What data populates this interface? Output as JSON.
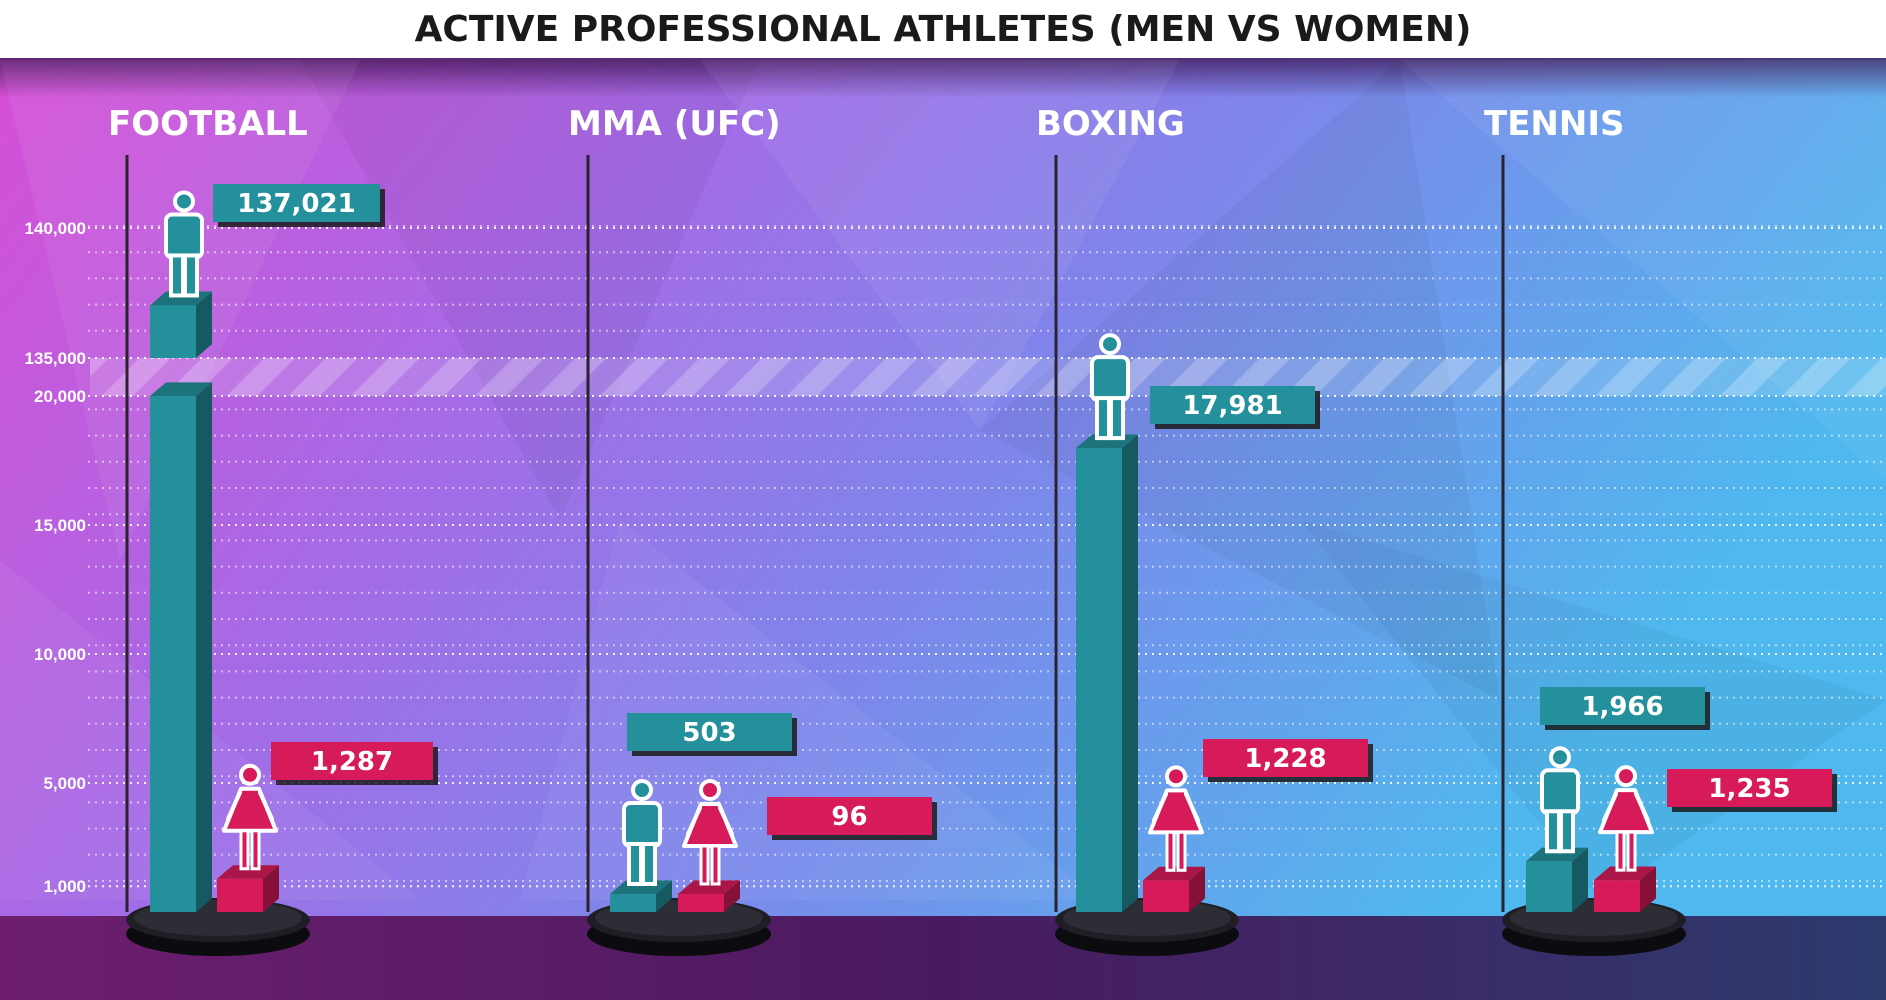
{
  "chart_data": {
    "type": "bar",
    "title": "ACTIVE PROFESSIONAL ATHLETES (MEN VS WOMEN)",
    "xlabel": "",
    "ylabel": "",
    "categories": [
      "FOOTBALL",
      "MMA (UFC)",
      "BOXING",
      "TENNIS"
    ],
    "series": [
      {
        "key": "men",
        "values": [
          137021,
          503,
          17981,
          1966
        ],
        "labels": [
          "137,021",
          "503",
          "17,981",
          "1,966"
        ],
        "color": "#23909b"
      },
      {
        "key": "women",
        "values": [
          1287,
          96,
          1228,
          1235
        ],
        "labels": [
          "1,287",
          "96",
          "1,228",
          "1,235"
        ],
        "color": "#d61a5a"
      }
    ],
    "y_axis": {
      "broken": true,
      "lower_range": [
        0,
        20000
      ],
      "upper_range": [
        135000,
        140000
      ],
      "ticks": [
        {
          "value": 1000,
          "label": "1,000"
        },
        {
          "value": 5000,
          "label": "5,000"
        },
        {
          "value": 10000,
          "label": "10,000"
        },
        {
          "value": 15000,
          "label": "15,000"
        },
        {
          "value": 20000,
          "label": "20,000"
        },
        {
          "value": 135000,
          "label": "135,000"
        },
        {
          "value": 140000,
          "label": "140,000"
        }
      ]
    },
    "grid": true,
    "legend": "none"
  },
  "colors": {
    "men": "#23909b",
    "women": "#d61a5a",
    "bg_left": "#d64fd6",
    "bg_mid": "#9a6ee8",
    "bg_right": "#4fb8ee",
    "floor": "#571d62",
    "platform": "#1e1e24"
  },
  "icons": {
    "men": "man-icon",
    "women": "woman-icon"
  }
}
